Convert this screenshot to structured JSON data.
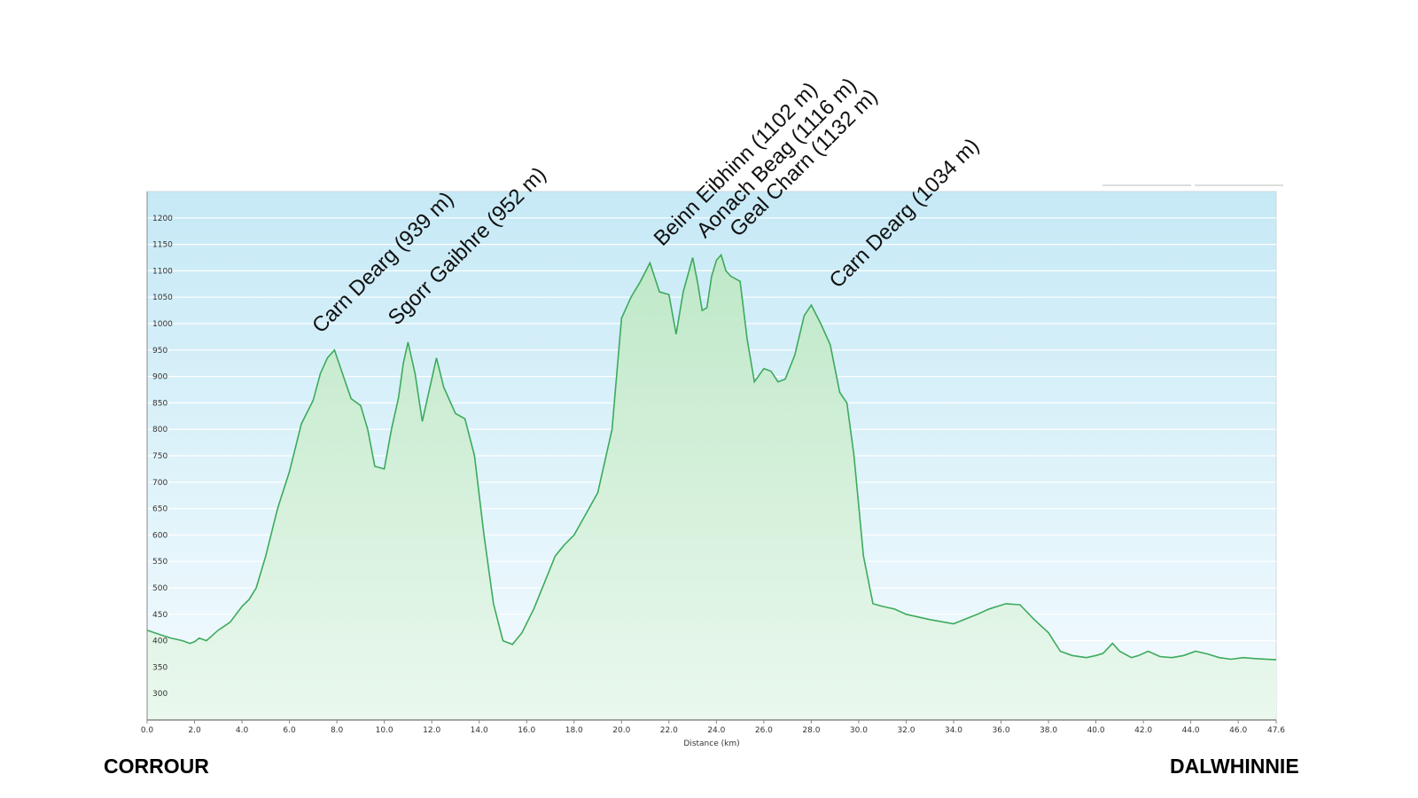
{
  "colors": {
    "line": "#3daa5c",
    "fill_top": "#bfe8c8",
    "fill_bottom": "#eaf8ee",
    "bg_top": "#c6e9f6",
    "bg_bottom": "#f4fbfe",
    "grid": "#ffffff",
    "axis": "#888888"
  },
  "start_label": "CORROUR",
  "end_label": "DALWHINNIE",
  "chart_data": {
    "type": "area",
    "title": "",
    "xlabel": "Distance  (km)",
    "ylabel": "",
    "xlim": [
      0,
      47.6
    ],
    "ylim": [
      250,
      1250
    ],
    "grid": true,
    "x_ticks": [
      "0.0",
      "2.0",
      "4.0",
      "6.0",
      "8.0",
      "10.0",
      "12.0",
      "14.0",
      "16.0",
      "18.0",
      "20.0",
      "22.0",
      "24.0",
      "26.0",
      "28.0",
      "30.0",
      "32.0",
      "34.0",
      "36.0",
      "38.0",
      "40.0",
      "42.0",
      "44.0",
      "46.0",
      "47.6"
    ],
    "y_ticks": [
      "300",
      "350",
      "400",
      "450",
      "500",
      "550",
      "600",
      "650",
      "700",
      "750",
      "800",
      "850",
      "900",
      "950",
      "1000",
      "1050",
      "1100",
      "1150",
      "1200"
    ],
    "series": [
      {
        "x": [
          0,
          0.5,
          1,
          1.5,
          1.8,
          2,
          2.2,
          2.5,
          3,
          3.5,
          4,
          4.3,
          4.6,
          5,
          5.5,
          6,
          6.5,
          7,
          7.3,
          7.6,
          7.9,
          8.2,
          8.6,
          9,
          9.3,
          9.6,
          10,
          10.3,
          10.6,
          10.8,
          11,
          11.3,
          11.6,
          11.8,
          12.2,
          12.5,
          13,
          13.4,
          13.8,
          14.2,
          14.6,
          15,
          15.4,
          15.8,
          16.3,
          16.8,
          17.2,
          17.6,
          18,
          18.5,
          19,
          19.6,
          20,
          20.4,
          20.8,
          21.2,
          21.6,
          22,
          22.3,
          22.6,
          23,
          23.2,
          23.4,
          23.6,
          23.8,
          24,
          24.2,
          24.4,
          24.6,
          25,
          25.3,
          25.6,
          26,
          26.3,
          26.6,
          26.9,
          27.3,
          27.7,
          28,
          28.4,
          28.8,
          29.2,
          29.5,
          29.8,
          30.2,
          30.6,
          31,
          31.3,
          31.5,
          32,
          33,
          34,
          35,
          35.5,
          36.2,
          36.8,
          37.4,
          38,
          38.5,
          39,
          39.6,
          40,
          40.3,
          40.7,
          41,
          41.5,
          41.8,
          42.2,
          42.7,
          43.2,
          43.7,
          44.2,
          44.7,
          45.2,
          45.7,
          46.2,
          46.8,
          47.6
        ],
        "y": [
          420,
          412,
          405,
          400,
          395,
          398,
          405,
          400,
          420,
          435,
          465,
          478,
          500,
          560,
          650,
          720,
          810,
          855,
          905,
          935,
          950,
          910,
          858,
          845,
          800,
          730,
          725,
          800,
          860,
          925,
          965,
          905,
          815,
          855,
          935,
          880,
          830,
          820,
          750,
          600,
          470,
          400,
          393,
          415,
          460,
          515,
          560,
          582,
          600,
          640,
          680,
          800,
          1010,
          1050,
          1080,
          1115,
          1060,
          1055,
          980,
          1060,
          1125,
          1080,
          1025,
          1030,
          1090,
          1120,
          1130,
          1100,
          1090,
          1080,
          970,
          890,
          915,
          910,
          890,
          895,
          940,
          1015,
          1035,
          1000,
          960,
          870,
          850,
          750,
          560,
          470,
          465,
          462,
          460,
          450,
          440,
          432,
          450,
          460,
          470,
          468,
          440,
          415,
          380,
          372,
          368,
          372,
          376,
          395,
          380,
          368,
          372,
          380,
          370,
          368,
          372,
          380,
          375,
          368,
          365,
          368,
          366,
          364
        ]
      }
    ],
    "annotations": [
      {
        "label": "Carn Dearg (939 m)",
        "x": 7.4,
        "y": 950
      },
      {
        "label": "Sgorr Gaibhre (952 m)",
        "x": 10.6,
        "y": 965
      },
      {
        "label": "Beinn Eibhinn (1102 m)",
        "x": 21.8,
        "y": 1115
      },
      {
        "label": "Aonach Beag (1116 m)",
        "x": 23.6,
        "y": 1130
      },
      {
        "label": "Geal Charn (1132 m)",
        "x": 25.0,
        "y": 1132
      },
      {
        "label": "Carn Dearg (1034 m)",
        "x": 29.2,
        "y": 1035
      }
    ]
  }
}
